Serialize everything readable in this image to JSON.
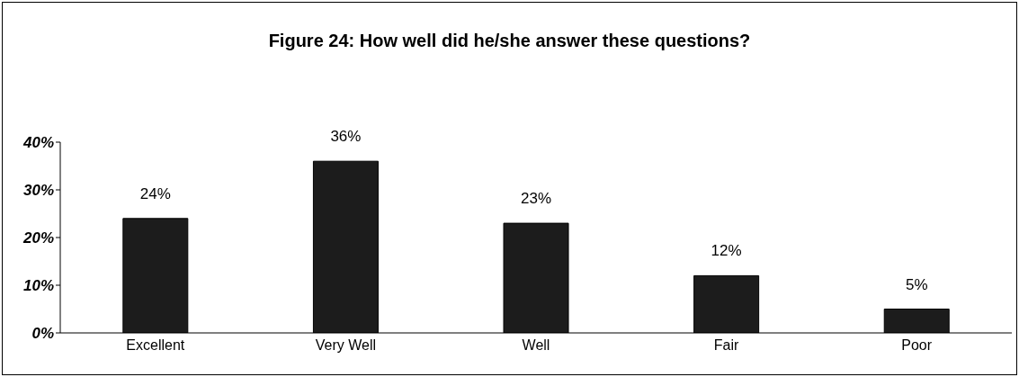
{
  "chart_data": {
    "type": "bar",
    "title": "Figure 24:  How well did he/she answer these questions?",
    "categories": [
      "Excellent",
      "Very Well",
      "Well",
      "Fair",
      "Poor"
    ],
    "values": [
      24,
      36,
      23,
      12,
      5
    ],
    "color": "#1c1c1c",
    "value_labels": [
      "24%",
      "36%",
      "23%",
      "12%",
      "5%"
    ],
    "ylim": [
      0,
      40
    ],
    "yticks": [
      {
        "value": 0,
        "label": "0%"
      },
      {
        "value": 10,
        "label": "10%"
      },
      {
        "value": 20,
        "label": "20%"
      },
      {
        "value": 30,
        "label": "30%"
      },
      {
        "value": 40,
        "label": "40%"
      }
    ],
    "grid": false,
    "legend": false
  }
}
